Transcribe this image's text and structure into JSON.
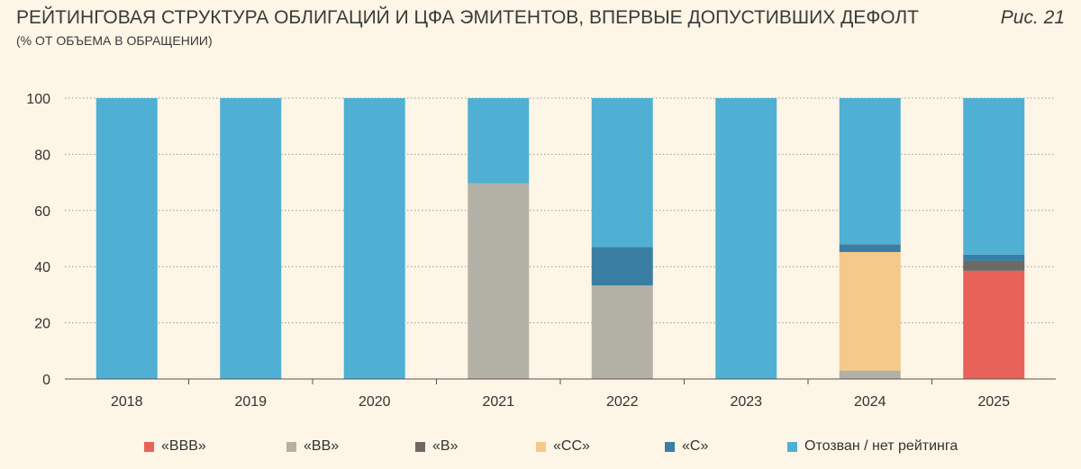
{
  "header": {
    "title": "РЕЙТИНГОВАЯ СТРУКТУРА ОБЛИГАЦИЙ И ЦФА ЭМИТЕНТОВ, ВПЕРВЫЕ ДОПУСТИВШИХ ДЕФОЛТ",
    "subtitle": "(% ОТ ОБЪЕМА В ОБРАЩЕНИИ)",
    "figure_label": "Рис. 21"
  },
  "chart_data": {
    "type": "bar",
    "stacked": true,
    "title": "РЕЙТИНГОВАЯ СТРУКТУРА ОБЛИГАЦИЙ И ЦФА ЭМИТЕНТОВ, ВПЕРВЫЕ ДОПУСТИВШИХ ДЕФОЛТ",
    "ylabel": "",
    "xlabel": "",
    "ylim": [
      0,
      100
    ],
    "yticks": [
      0,
      20,
      40,
      60,
      80,
      100
    ],
    "grid": true,
    "legend_position": "bottom",
    "categories": [
      "2018",
      "2019",
      "2020",
      "2021",
      "2022",
      "2023",
      "2024",
      "2025"
    ],
    "series": [
      {
        "name": "«BBB»",
        "color": "#e8625a",
        "values": [
          0,
          0,
          0,
          0,
          0,
          0,
          0,
          38.5
        ]
      },
      {
        "name": "«BB»",
        "color": "#b3b0a6",
        "values": [
          0,
          0,
          0,
          69.7,
          33.3,
          0,
          3.0,
          0
        ]
      },
      {
        "name": "«B»",
        "color": "#6e6a63",
        "values": [
          0,
          0,
          0,
          0,
          0,
          0,
          0,
          3.5
        ]
      },
      {
        "name": "«CC»",
        "color": "#f5c98a",
        "values": [
          0,
          0,
          0,
          0,
          0,
          0,
          42.2,
          0
        ]
      },
      {
        "name": "«C»",
        "color": "#3a7fa3",
        "values": [
          0,
          0,
          0,
          0,
          13.7,
          0,
          2.8,
          2.3
        ]
      },
      {
        "name": "Отозван / нет рейтинга",
        "color": "#4fb0d3",
        "values": [
          100,
          100,
          100,
          30.3,
          53.0,
          100,
          52.0,
          55.7
        ]
      }
    ]
  }
}
